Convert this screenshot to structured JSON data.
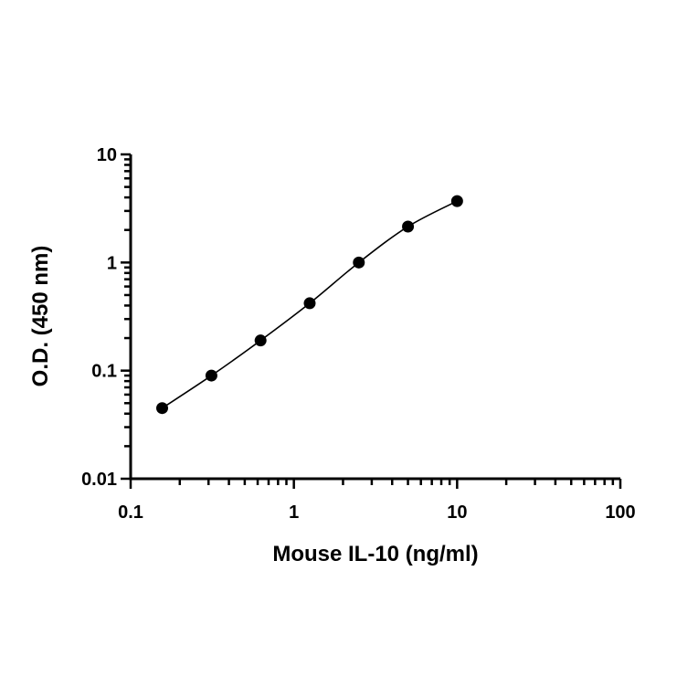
{
  "chart_data": {
    "type": "scatter",
    "title": "",
    "xlabel": "Mouse IL-10 (ng/ml)",
    "ylabel": "O.D. (450 nm)",
    "xscale": "log",
    "yscale": "log",
    "xlim": [
      0.1,
      100
    ],
    "ylim": [
      0.01,
      10
    ],
    "x_ticks": [
      "0.1",
      "1",
      "10",
      "100"
    ],
    "y_ticks": [
      "0.01",
      "0.1",
      "1",
      "10"
    ],
    "grid": false,
    "legend": "none",
    "x": [
      0.156,
      0.3125,
      0.625,
      1.25,
      2.5,
      5,
      10
    ],
    "y": [
      0.045,
      0.09,
      0.19,
      0.42,
      1.0,
      2.15,
      3.7
    ],
    "fit_curve": true,
    "colors": {
      "points": "#000000",
      "curve": "#000000"
    }
  }
}
